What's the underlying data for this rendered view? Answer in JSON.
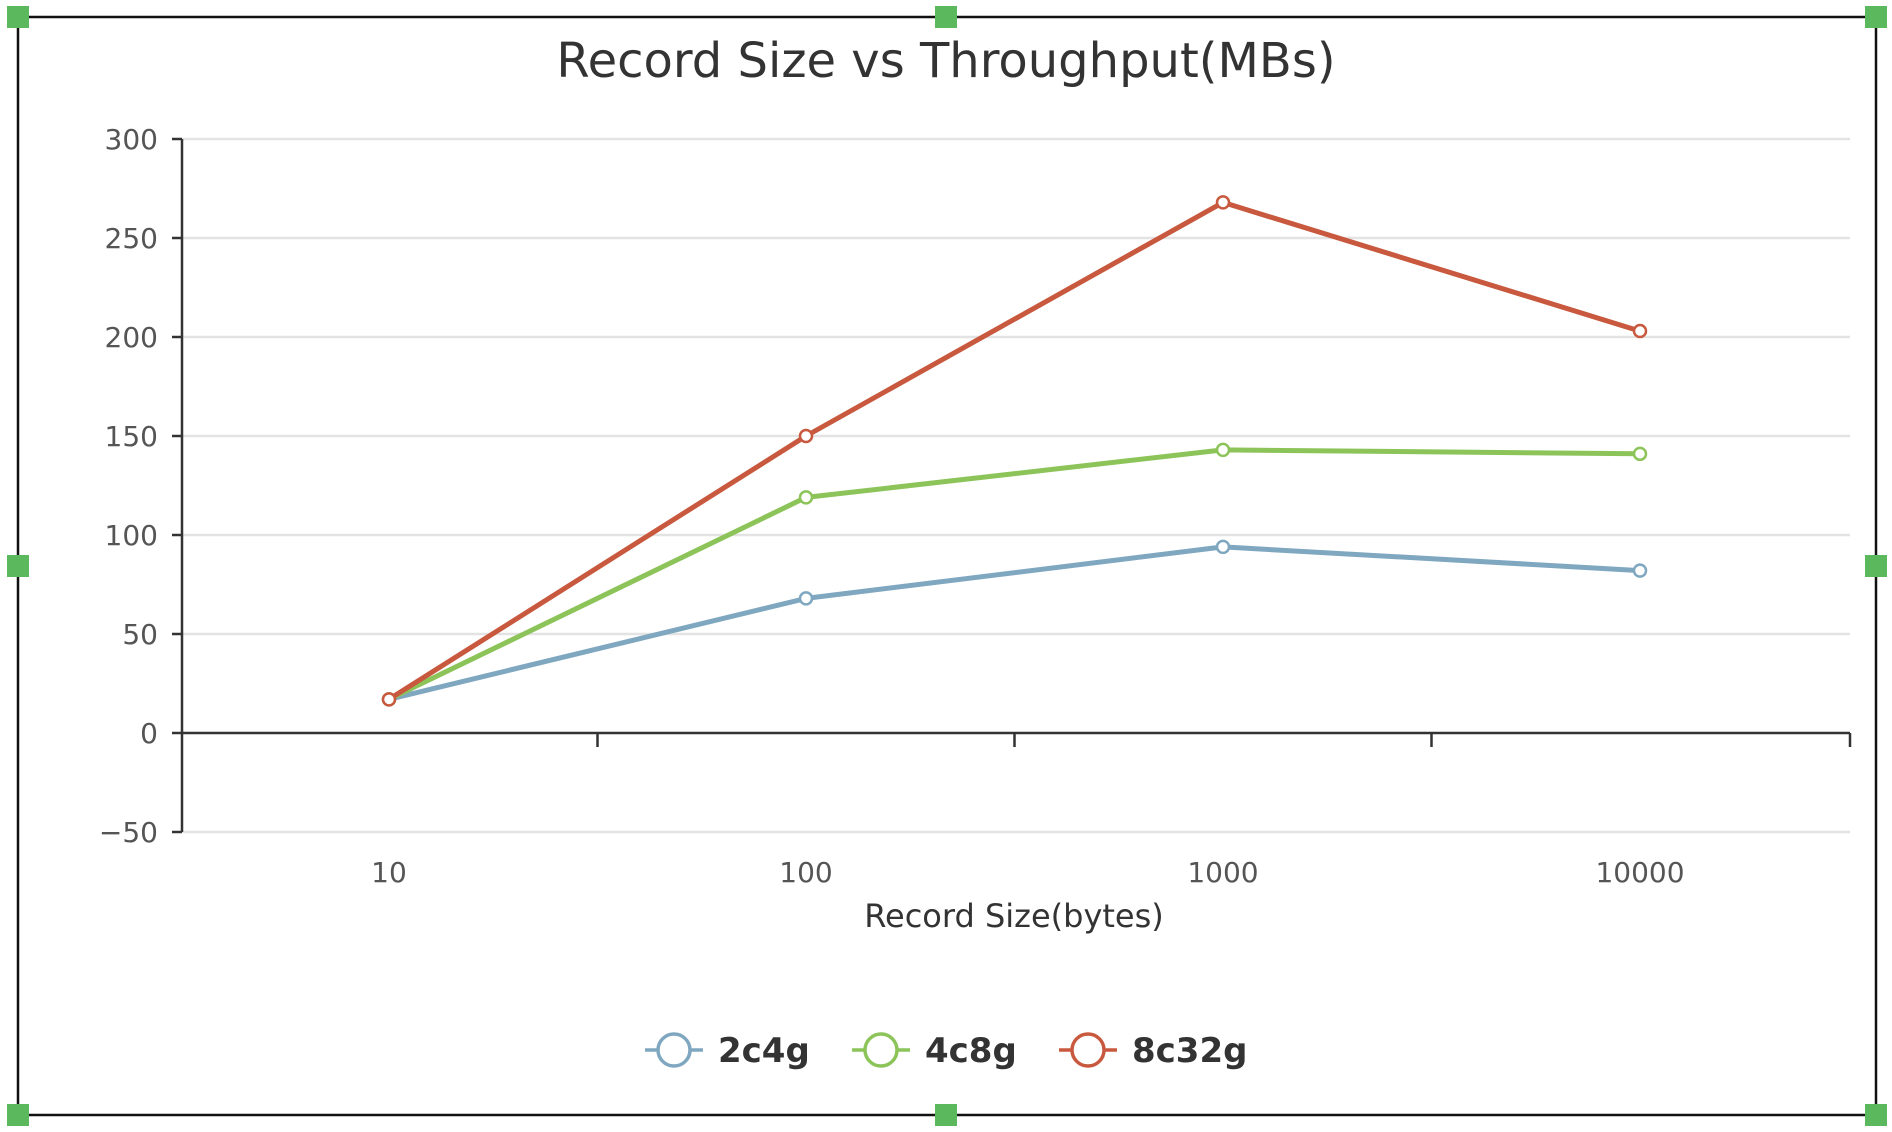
{
  "colors": {
    "series": [
      "#7fa7c0",
      "#8cc45a",
      "#c8593e"
    ],
    "handles": "#5cb85c"
  },
  "chart_data": {
    "type": "line",
    "title": "Record Size vs Throughput(MBs)",
    "xlabel": "Record Size(bytes)",
    "ylabel": "",
    "x": [
      10,
      100,
      1000,
      10000
    ],
    "x_tick_labels": [
      "10",
      "100",
      "1000",
      "10000"
    ],
    "x_scale": "log",
    "ylim": [
      -50,
      300
    ],
    "y_ticks": [
      -50,
      0,
      50,
      100,
      150,
      200,
      250,
      300
    ],
    "y_tick_labels": [
      "−50",
      "0",
      "50",
      "100",
      "150",
      "200",
      "250",
      "300"
    ],
    "grid": true,
    "legend_position": "bottom-center",
    "series": [
      {
        "name": "2c4g",
        "values": [
          17,
          68,
          94,
          82
        ]
      },
      {
        "name": "4c8g",
        "values": [
          17,
          119,
          143,
          141
        ]
      },
      {
        "name": "8c32g",
        "values": [
          17,
          150,
          268,
          203
        ]
      }
    ]
  }
}
